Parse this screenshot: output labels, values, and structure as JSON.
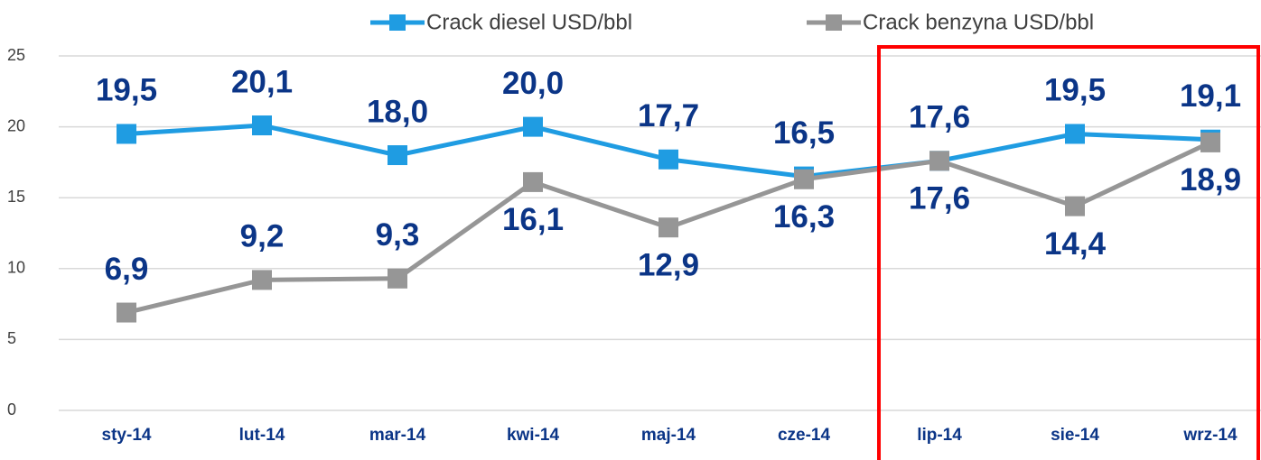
{
  "chart_data": {
    "type": "line",
    "categories": [
      "sty-14",
      "lut-14",
      "mar-14",
      "kwi-14",
      "maj-14",
      "cze-14",
      "lip-14",
      "sie-14",
      "wrz-14"
    ],
    "series": [
      {
        "name": "Crack diesel USD/bbl",
        "color": "#1f9ce2",
        "values": [
          19.5,
          20.1,
          18.0,
          20.0,
          17.7,
          16.5,
          17.6,
          19.5,
          19.1
        ],
        "value_labels": [
          "19,5",
          "20,1",
          "18,0",
          "20,0",
          "17,7",
          "16,5",
          "17,6",
          "19,5",
          "19,1"
        ]
      },
      {
        "name": "Crack benzyna USD/bbl",
        "color": "#969696",
        "values": [
          6.9,
          9.2,
          9.3,
          16.1,
          12.9,
          16.3,
          17.6,
          14.4,
          18.9
        ],
        "value_labels": [
          "6,9",
          "9,2",
          "9,3",
          "16,1",
          "12,9",
          "16,3",
          "17,6",
          "14,4",
          "18,9"
        ]
      }
    ],
    "ylim": [
      0,
      25
    ],
    "yticks": [
      0,
      5,
      10,
      15,
      20,
      25
    ],
    "grid": true,
    "legend": "top"
  }
}
